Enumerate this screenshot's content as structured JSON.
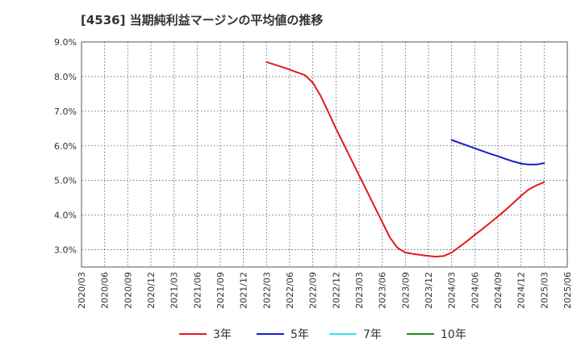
{
  "chart_data": {
    "type": "line",
    "title": "[4536]  当期純利益マージンの平均値の推移",
    "xlabel": "",
    "ylabel": "",
    "x_ticks": [
      "2020/03",
      "2020/06",
      "2020/09",
      "2020/12",
      "2021/03",
      "2021/06",
      "2021/09",
      "2021/12",
      "2022/03",
      "2022/06",
      "2022/09",
      "2022/12",
      "2023/03",
      "2023/06",
      "2023/09",
      "2023/12",
      "2024/03",
      "2024/06",
      "2024/09",
      "2024/12",
      "2025/03",
      "2025/06"
    ],
    "y_ticks": [
      "3.0%",
      "4.0%",
      "5.0%",
      "6.0%",
      "7.0%",
      "8.0%",
      "9.0%"
    ],
    "ylim": [
      2.5,
      9.0
    ],
    "grid": true,
    "legend_position": "bottom",
    "series": [
      {
        "name": "3年",
        "color": "#e31a1c",
        "points": [
          [
            "2022/03",
            8.42
          ],
          [
            "2022/04",
            8.35
          ],
          [
            "2022/05",
            8.28
          ],
          [
            "2022/06",
            8.2
          ],
          [
            "2022/07",
            8.12
          ],
          [
            "2022/08",
            8.04
          ],
          [
            "2022/09",
            7.82
          ],
          [
            "2022/10",
            7.45
          ],
          [
            "2022/11",
            6.98
          ],
          [
            "2022/12",
            6.5
          ],
          [
            "2023/01",
            6.05
          ],
          [
            "2023/02",
            5.6
          ],
          [
            "2023/03",
            5.15
          ],
          [
            "2023/04",
            4.7
          ],
          [
            "2023/05",
            4.25
          ],
          [
            "2023/06",
            3.8
          ],
          [
            "2023/07",
            3.35
          ],
          [
            "2023/08",
            3.05
          ],
          [
            "2023/09",
            2.92
          ],
          [
            "2023/10",
            2.88
          ],
          [
            "2023/11",
            2.85
          ],
          [
            "2023/12",
            2.82
          ],
          [
            "2024/01",
            2.8
          ],
          [
            "2024/02",
            2.82
          ],
          [
            "2024/03",
            2.92
          ],
          [
            "2024/04",
            3.08
          ],
          [
            "2024/05",
            3.25
          ],
          [
            "2024/06",
            3.43
          ],
          [
            "2024/07",
            3.6
          ],
          [
            "2024/08",
            3.78
          ],
          [
            "2024/09",
            3.96
          ],
          [
            "2024/10",
            4.15
          ],
          [
            "2024/11",
            4.35
          ],
          [
            "2024/12",
            4.56
          ],
          [
            "2025/01",
            4.74
          ],
          [
            "2025/02",
            4.86
          ],
          [
            "2025/03",
            4.95
          ]
        ]
      },
      {
        "name": "5年",
        "color": "#1a1ac8",
        "points": [
          [
            "2024/03",
            6.17
          ],
          [
            "2024/04",
            6.09
          ],
          [
            "2024/05",
            6.01
          ],
          [
            "2024/06",
            5.93
          ],
          [
            "2024/07",
            5.85
          ],
          [
            "2024/08",
            5.77
          ],
          [
            "2024/09",
            5.7
          ],
          [
            "2024/10",
            5.62
          ],
          [
            "2024/11",
            5.55
          ],
          [
            "2024/12",
            5.49
          ],
          [
            "2025/01",
            5.46
          ],
          [
            "2025/02",
            5.46
          ],
          [
            "2025/03",
            5.5
          ]
        ]
      },
      {
        "name": "7年",
        "color": "#33e6f2",
        "points": []
      },
      {
        "name": "10年",
        "color": "#228b22",
        "points": []
      }
    ]
  }
}
